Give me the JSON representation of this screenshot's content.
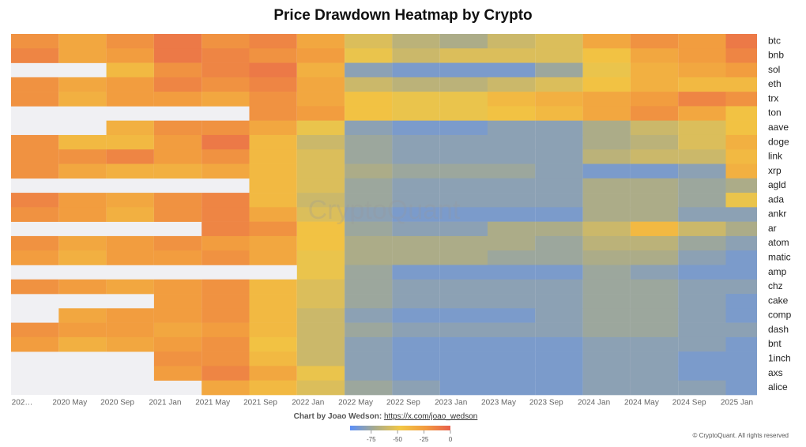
{
  "chart_data": {
    "type": "heatmap",
    "title": "Price Drawdown Heatmap by Crypto",
    "categories": [
      "202…",
      "2020 May",
      "2020 Sep",
      "2021 Jan",
      "2021 May",
      "2021 Sep",
      "2022 Jan",
      "2022 May",
      "2022 Sep",
      "2023 Jan",
      "2023 May",
      "2023 Sep",
      "2024 Jan",
      "2024 May",
      "2024 Sep",
      "2025 Jan"
    ],
    "series": [
      {
        "name": "btc",
        "values": [
          -20,
          -30,
          -20,
          -10,
          -20,
          -15,
          -30,
          -55,
          -65,
          -70,
          -60,
          -55,
          -30,
          -20,
          -25,
          -10
        ]
      },
      {
        "name": "bnb",
        "values": [
          -15,
          -30,
          -25,
          -10,
          -15,
          -20,
          -25,
          -50,
          -60,
          -55,
          -55,
          -55,
          -45,
          -30,
          -25,
          -15
        ]
      },
      {
        "name": "sol",
        "values": [
          null,
          null,
          -40,
          -20,
          -15,
          -10,
          -35,
          -80,
          -85,
          -85,
          -85,
          -75,
          -50,
          -35,
          -30,
          -25
        ]
      },
      {
        "name": "eth",
        "values": [
          -20,
          -30,
          -25,
          -15,
          -20,
          -15,
          -30,
          -60,
          -65,
          -65,
          -60,
          -55,
          -45,
          -35,
          -40,
          -40
        ]
      },
      {
        "name": "trx",
        "values": [
          -20,
          -35,
          -25,
          -25,
          -30,
          -20,
          -30,
          -45,
          -50,
          -50,
          -40,
          -35,
          -30,
          -25,
          -15,
          -20
        ]
      },
      {
        "name": "ton",
        "values": [
          null,
          null,
          null,
          null,
          null,
          -20,
          -25,
          -45,
          -50,
          -50,
          -45,
          -40,
          -30,
          -20,
          -30,
          -45
        ]
      },
      {
        "name": "aave",
        "values": [
          null,
          null,
          -35,
          -20,
          -20,
          -30,
          -50,
          -80,
          -85,
          -85,
          -80,
          -80,
          -70,
          -60,
          -55,
          -45
        ]
      },
      {
        "name": "doge",
        "values": [
          -20,
          -40,
          -40,
          -25,
          -10,
          -40,
          -60,
          -75,
          -80,
          -80,
          -80,
          -80,
          -70,
          -65,
          -55,
          -35
        ]
      },
      {
        "name": "link",
        "values": [
          -20,
          -20,
          -15,
          -25,
          -20,
          -40,
          -55,
          -75,
          -80,
          -80,
          -80,
          -80,
          -65,
          -60,
          -60,
          -40
        ]
      },
      {
        "name": "xrp",
        "values": [
          -20,
          -30,
          -35,
          -35,
          -30,
          -40,
          -55,
          -70,
          -75,
          -75,
          -75,
          -80,
          -85,
          -85,
          -80,
          -35
        ]
      },
      {
        "name": "agld",
        "values": [
          null,
          null,
          null,
          null,
          null,
          -40,
          -55,
          -75,
          -80,
          -80,
          -80,
          -80,
          -70,
          -70,
          -75,
          -70
        ]
      },
      {
        "name": "ada",
        "values": [
          -15,
          -25,
          -30,
          -20,
          -15,
          -40,
          -60,
          -75,
          -80,
          -80,
          -80,
          -80,
          -70,
          -70,
          -75,
          -50
        ]
      },
      {
        "name": "ankr",
        "values": [
          -20,
          -25,
          -35,
          -20,
          -15,
          -30,
          -55,
          -80,
          -85,
          -85,
          -85,
          -85,
          -70,
          -70,
          -80,
          -80
        ]
      },
      {
        "name": "ar",
        "values": [
          null,
          null,
          null,
          null,
          -15,
          -20,
          -45,
          -75,
          -80,
          -80,
          -70,
          -70,
          -60,
          -40,
          -60,
          -70
        ]
      },
      {
        "name": "atom",
        "values": [
          -20,
          -30,
          -25,
          -20,
          -25,
          -30,
          -45,
          -70,
          -70,
          -70,
          -70,
          -75,
          -65,
          -65,
          -75,
          -80
        ]
      },
      {
        "name": "matic",
        "values": [
          -25,
          -35,
          -25,
          -25,
          -20,
          -30,
          -50,
          -70,
          -70,
          -70,
          -75,
          -75,
          -70,
          -70,
          -80,
          -85
        ]
      },
      {
        "name": "amp",
        "values": [
          null,
          null,
          null,
          null,
          null,
          null,
          -50,
          -75,
          -85,
          -85,
          -85,
          -85,
          -75,
          -80,
          -85,
          -85
        ]
      },
      {
        "name": "chz",
        "values": [
          -20,
          -25,
          -30,
          -25,
          -20,
          -40,
          -55,
          -75,
          -80,
          -80,
          -80,
          -80,
          -75,
          -75,
          -80,
          -80
        ]
      },
      {
        "name": "cake",
        "values": [
          null,
          null,
          null,
          -25,
          -20,
          -40,
          -55,
          -75,
          -80,
          -80,
          -80,
          -80,
          -75,
          -75,
          -80,
          -85
        ]
      },
      {
        "name": "comp",
        "values": [
          null,
          -30,
          -25,
          -25,
          -20,
          -40,
          -60,
          -80,
          -85,
          -85,
          -85,
          -80,
          -75,
          -75,
          -80,
          -85
        ]
      },
      {
        "name": "dash",
        "values": [
          -20,
          -25,
          -25,
          -30,
          -25,
          -40,
          -60,
          -75,
          -80,
          -80,
          -80,
          -80,
          -75,
          -75,
          -80,
          -80
        ]
      },
      {
        "name": "bnt",
        "values": [
          -25,
          -35,
          -30,
          -25,
          -20,
          -45,
          -60,
          -80,
          -85,
          -85,
          -85,
          -85,
          -80,
          -80,
          -80,
          -85
        ]
      },
      {
        "name": "1inch",
        "values": [
          null,
          null,
          null,
          -20,
          -20,
          -40,
          -60,
          -80,
          -85,
          -85,
          -85,
          -85,
          -80,
          -80,
          -85,
          -85
        ]
      },
      {
        "name": "axs",
        "values": [
          null,
          null,
          null,
          -25,
          -15,
          -30,
          -50,
          -80,
          -85,
          -85,
          -85,
          -85,
          -80,
          -80,
          -85,
          -85
        ]
      },
      {
        "name": "alice",
        "values": [
          null,
          null,
          null,
          null,
          -30,
          -40,
          -55,
          -75,
          -80,
          -85,
          -85,
          -85,
          -80,
          -80,
          -80,
          -85
        ]
      }
    ],
    "zlim": [
      -95,
      0
    ],
    "zticks": [
      -75,
      -50,
      -25,
      0
    ],
    "colorscale": [
      "#5b8ff9",
      "#a8ab8c",
      "#f2c744",
      "#f29b3f",
      "#e8604c"
    ],
    "credit": "Chart by Joao Wedson:",
    "credit_link": "https://x.com/joao_wedson",
    "watermark": "CryptoQuant",
    "copyright": "© CryptoQuant. All rights reserved"
  }
}
